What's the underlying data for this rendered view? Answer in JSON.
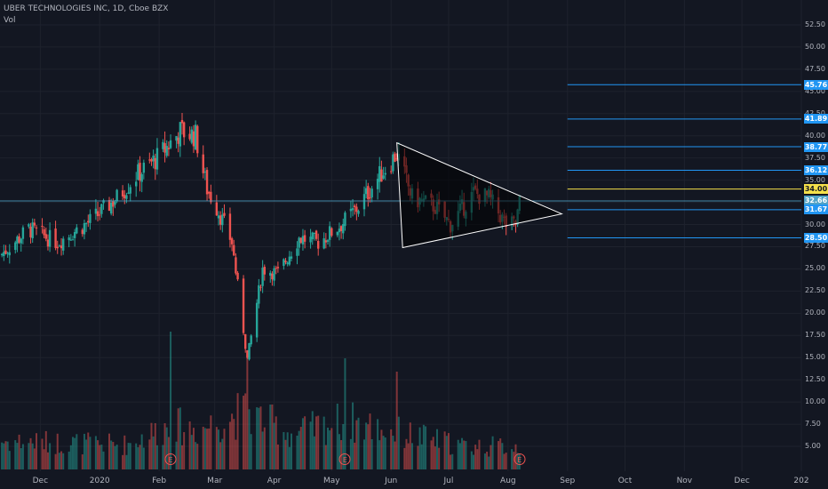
{
  "header": {
    "title": "UBER TECHNOLOGIES INC, 1D, Cboe BZX",
    "volume_label": "Vol"
  },
  "earnings_marker": "E",
  "colors": {
    "background": "#131722",
    "up": "#26a69a",
    "down": "#ef5350",
    "level_line": "#2196f3",
    "highlight_level": "#f5e04a",
    "crosshair": "#4fa3c8",
    "triangle": "#ffffff",
    "label_text": "#b2b5be"
  },
  "chart_data": {
    "type": "candlestick",
    "title": "UBER TECHNOLOGIES INC, 1D, Cboe BZX",
    "y_axis": {
      "position": "right",
      "ticks": [
        "52.50",
        "50.00",
        "47.50",
        "45.00",
        "42.50",
        "40.00",
        "37.50",
        "35.00",
        "32.50",
        "30.00",
        "27.50",
        "25.00",
        "22.50",
        "20.00",
        "17.50",
        "15.00",
        "12.50",
        "10.00",
        "7.50",
        "5.00"
      ],
      "range": [
        3.9,
        53.5
      ]
    },
    "x_axis": {
      "ticks": [
        {
          "label": "Dec",
          "date": "2019-12-01"
        },
        {
          "label": "2020",
          "date": "2020-01-01"
        },
        {
          "label": "Feb",
          "date": "2020-02-01"
        },
        {
          "label": "Mar",
          "date": "2020-03-01"
        },
        {
          "label": "Apr",
          "date": "2020-04-01"
        },
        {
          "label": "May",
          "date": "2020-05-01"
        },
        {
          "label": "Jun",
          "date": "2020-06-01"
        },
        {
          "label": "Jul",
          "date": "2020-07-01"
        },
        {
          "label": "Aug",
          "date": "2020-08-01"
        },
        {
          "label": "Sep",
          "date": "2020-09-01"
        },
        {
          "label": "Oct",
          "date": "2020-10-01"
        },
        {
          "label": "Nov",
          "date": "2020-11-01"
        },
        {
          "label": "Dec",
          "date": "2020-12-01"
        },
        {
          "label": "202",
          "date": "2021-01-01"
        }
      ],
      "range": [
        "2019-11-10",
        "2021-01-01"
      ]
    },
    "price_path": [
      {
        "date": "2019-11-10",
        "close": 26.5
      },
      {
        "date": "2019-11-25",
        "close": 29.5
      },
      {
        "date": "2019-12-10",
        "close": 28.0
      },
      {
        "date": "2019-12-28",
        "close": 30.5
      },
      {
        "date": "2020-01-10",
        "close": 33.0
      },
      {
        "date": "2020-01-20",
        "close": 35.5
      },
      {
        "date": "2020-01-31",
        "close": 37.5
      },
      {
        "date": "2020-02-12",
        "close": 40.5
      },
      {
        "date": "2020-02-20",
        "close": 40.0
      },
      {
        "date": "2020-02-26",
        "close": 34.0
      },
      {
        "date": "2020-03-03",
        "close": 31.5
      },
      {
        "date": "2020-03-10",
        "close": 28.0
      },
      {
        "date": "2020-03-18",
        "close": 14.8
      },
      {
        "date": "2020-03-26",
        "close": 25.0
      },
      {
        "date": "2020-04-03",
        "close": 24.5
      },
      {
        "date": "2020-04-14",
        "close": 28.5
      },
      {
        "date": "2020-04-24",
        "close": 28.0
      },
      {
        "date": "2020-05-06",
        "close": 30.0
      },
      {
        "date": "2020-05-15",
        "close": 32.0
      },
      {
        "date": "2020-05-26",
        "close": 35.5
      },
      {
        "date": "2020-06-04",
        "close": 38.0
      },
      {
        "date": "2020-06-12",
        "close": 33.0
      },
      {
        "date": "2020-06-24",
        "close": 32.0
      },
      {
        "date": "2020-07-02",
        "close": 30.0
      },
      {
        "date": "2020-07-14",
        "close": 33.5
      },
      {
        "date": "2020-07-22",
        "close": 33.0
      },
      {
        "date": "2020-07-31",
        "close": 30.0
      },
      {
        "date": "2020-08-05",
        "close": 30.0
      },
      {
        "date": "2020-08-07",
        "close": 32.5
      }
    ],
    "volume_range": [
      0,
      20
    ],
    "volume_path": [
      {
        "date": "2019-11-10",
        "volume": 3.2
      },
      {
        "date": "2020-01-15",
        "volume": 2.8
      },
      {
        "date": "2020-02-07",
        "volume": 5.0
      },
      {
        "date": "2020-02-21",
        "volume": 4.5
      },
      {
        "date": "2020-03-18",
        "volume": 6.5
      },
      {
        "date": "2020-04-10",
        "volume": 4.0
      },
      {
        "date": "2020-05-08",
        "volume": 5.5
      },
      {
        "date": "2020-06-08",
        "volume": 4.0
      },
      {
        "date": "2020-07-10",
        "volume": 2.6
      },
      {
        "date": "2020-08-07",
        "volume": 2.6
      }
    ],
    "volume_spikes": [
      {
        "date": "2020-02-07",
        "volume": 15.5
      },
      {
        "date": "2020-03-18",
        "volume": 12.5
      },
      {
        "date": "2020-05-08",
        "volume": 12.5
      },
      {
        "date": "2020-06-04",
        "volume": 11.0
      }
    ],
    "earnings_dates": [
      "2020-02-07",
      "2020-05-08",
      "2020-08-07"
    ],
    "current_price": 32.66,
    "price_levels": [
      {
        "value": 45.76,
        "label": "45.76",
        "highlight": false
      },
      {
        "value": 41.89,
        "label": "41.89",
        "highlight": false
      },
      {
        "value": 38.77,
        "label": "38.77",
        "highlight": false
      },
      {
        "value": 36.12,
        "label": "36.12",
        "highlight": false
      },
      {
        "value": 34.0,
        "label": "34.00",
        "highlight": true
      },
      {
        "value": 32.66,
        "label": "32.66",
        "highlight": false,
        "current": true
      },
      {
        "value": 31.67,
        "label": "31.67",
        "highlight": false
      },
      {
        "value": 28.5,
        "label": "28.50",
        "highlight": false
      }
    ],
    "price_levels_start_date": "2020-09-01",
    "triangle_pattern": [
      {
        "date": "2020-06-04",
        "price": 39.2
      },
      {
        "date": "2020-06-07",
        "price": 27.4
      },
      {
        "date": "2020-08-29",
        "price": 31.2
      }
    ]
  }
}
